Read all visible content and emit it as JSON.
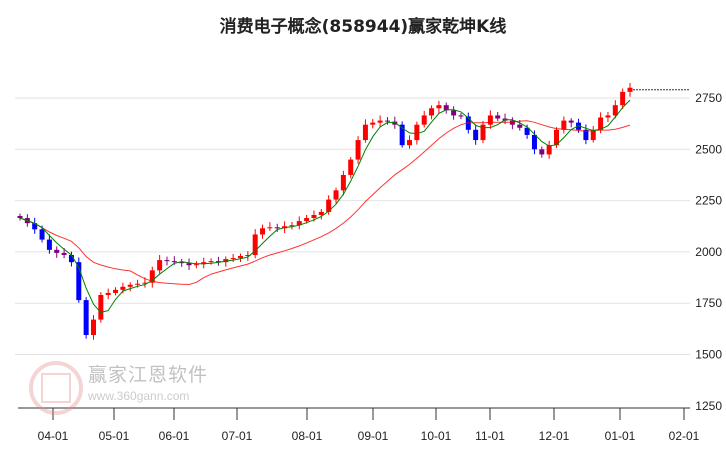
{
  "chart_data": {
    "type": "candlestick",
    "title": "消费电子概念(858944)赢家乾坤K线",
    "y_ticks": [
      2750,
      2500,
      2250,
      2000,
      1750,
      1500,
      1250
    ],
    "x_ticks": [
      "04-01",
      "05-01",
      "06-01",
      "07-01",
      "08-01",
      "09-01",
      "10-01",
      "11-01",
      "12-01",
      "01-01",
      "02-01"
    ],
    "ylim": [
      1250,
      2850
    ],
    "grid": true,
    "colors": {
      "up": "#ff0000",
      "down": "#0000ff",
      "neutral": "#800080",
      "ma_short": "#008000",
      "ma_long": "#ff0000"
    },
    "close": [
      2165,
      2140,
      2110,
      2060,
      2010,
      1995,
      1985,
      1950,
      1765,
      1595,
      1670,
      1790,
      1800,
      1815,
      1830,
      1840,
      1845,
      1850,
      1910,
      1960,
      1955,
      1950,
      1945,
      1935,
      1940,
      1950,
      1955,
      1950,
      1965,
      1970,
      1980,
      1985,
      2085,
      2115,
      2120,
      2115,
      2125,
      2130,
      2150,
      2165,
      2180,
      2195,
      2255,
      2300,
      2375,
      2450,
      2545,
      2620,
      2630,
      2640,
      2635,
      2620,
      2520,
      2545,
      2620,
      2665,
      2700,
      2715,
      2690,
      2665,
      2660,
      2595,
      2545,
      2620,
      2665,
      2650,
      2640,
      2620,
      2605,
      2570,
      2500,
      2475,
      2520,
      2595,
      2640,
      2630,
      2595,
      2545,
      2595,
      2655,
      2665,
      2715,
      2780,
      2800
    ],
    "last_value_line": 2790
  },
  "watermark": {
    "name": "赢家江恩软件",
    "url": "www.360gann.com",
    "seal": "江恩赢家"
  }
}
